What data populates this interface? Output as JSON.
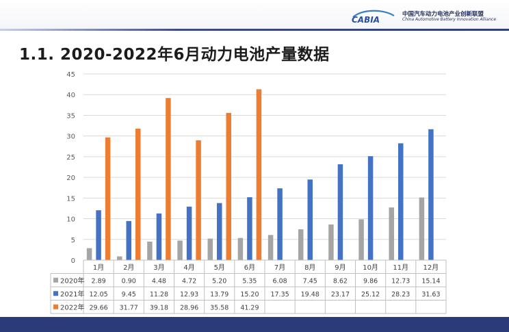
{
  "header": {
    "logo_text": "CABIA",
    "org_name_cn": "中国汽车动力电池产业创新联盟",
    "org_name_en": "China Automotive Battery Innovation Alliance"
  },
  "slide_title": "1.1.  2020-2022年6月动力电池产量数据",
  "colors": {
    "s2020": "#a5a5a5",
    "s2021": "#4472c4",
    "s2022": "#ed7d31",
    "grid": "#d9d9d9",
    "footer": "#2b3a78"
  },
  "chart_data": {
    "type": "bar",
    "title": "",
    "xlabel": "",
    "ylabel": "",
    "ylim": [
      0,
      45
    ],
    "yticks": [
      "0",
      "5",
      "10",
      "15",
      "20",
      "25",
      "30",
      "35",
      "40",
      "45"
    ],
    "grid": true,
    "legend": "table-below",
    "categories": [
      "1月",
      "2月",
      "3月",
      "4月",
      "5月",
      "6月",
      "7月",
      "8月",
      "9月",
      "10月",
      "11月",
      "12月"
    ],
    "series": [
      {
        "name": "2020年",
        "values": [
          2.89,
          0.9,
          4.48,
          4.72,
          5.2,
          5.35,
          6.08,
          7.45,
          8.62,
          9.86,
          12.73,
          15.14
        ],
        "labels": [
          "2.89",
          "0.90",
          "4.48",
          "4.72",
          "5.20",
          "5.35",
          "6.08",
          "7.45",
          "8.62",
          "9.86",
          "12.73",
          "15.14"
        ]
      },
      {
        "name": "2021年",
        "values": [
          12.05,
          9.45,
          11.28,
          12.93,
          13.79,
          15.2,
          17.35,
          19.48,
          23.17,
          25.12,
          28.23,
          31.63
        ],
        "labels": [
          "12.05",
          "9.45",
          "11.28",
          "12.93",
          "13.79",
          "15.20",
          "17.35",
          "19.48",
          "23.17",
          "25.12",
          "28.23",
          "31.63"
        ]
      },
      {
        "name": "2022年",
        "values": [
          29.66,
          31.77,
          39.18,
          28.96,
          35.58,
          41.29,
          null,
          null,
          null,
          null,
          null,
          null
        ],
        "labels": [
          "29.66",
          "31.77",
          "39.18",
          "28.96",
          "35.58",
          "41.29",
          "",
          "",
          "",
          "",
          "",
          ""
        ]
      }
    ]
  }
}
